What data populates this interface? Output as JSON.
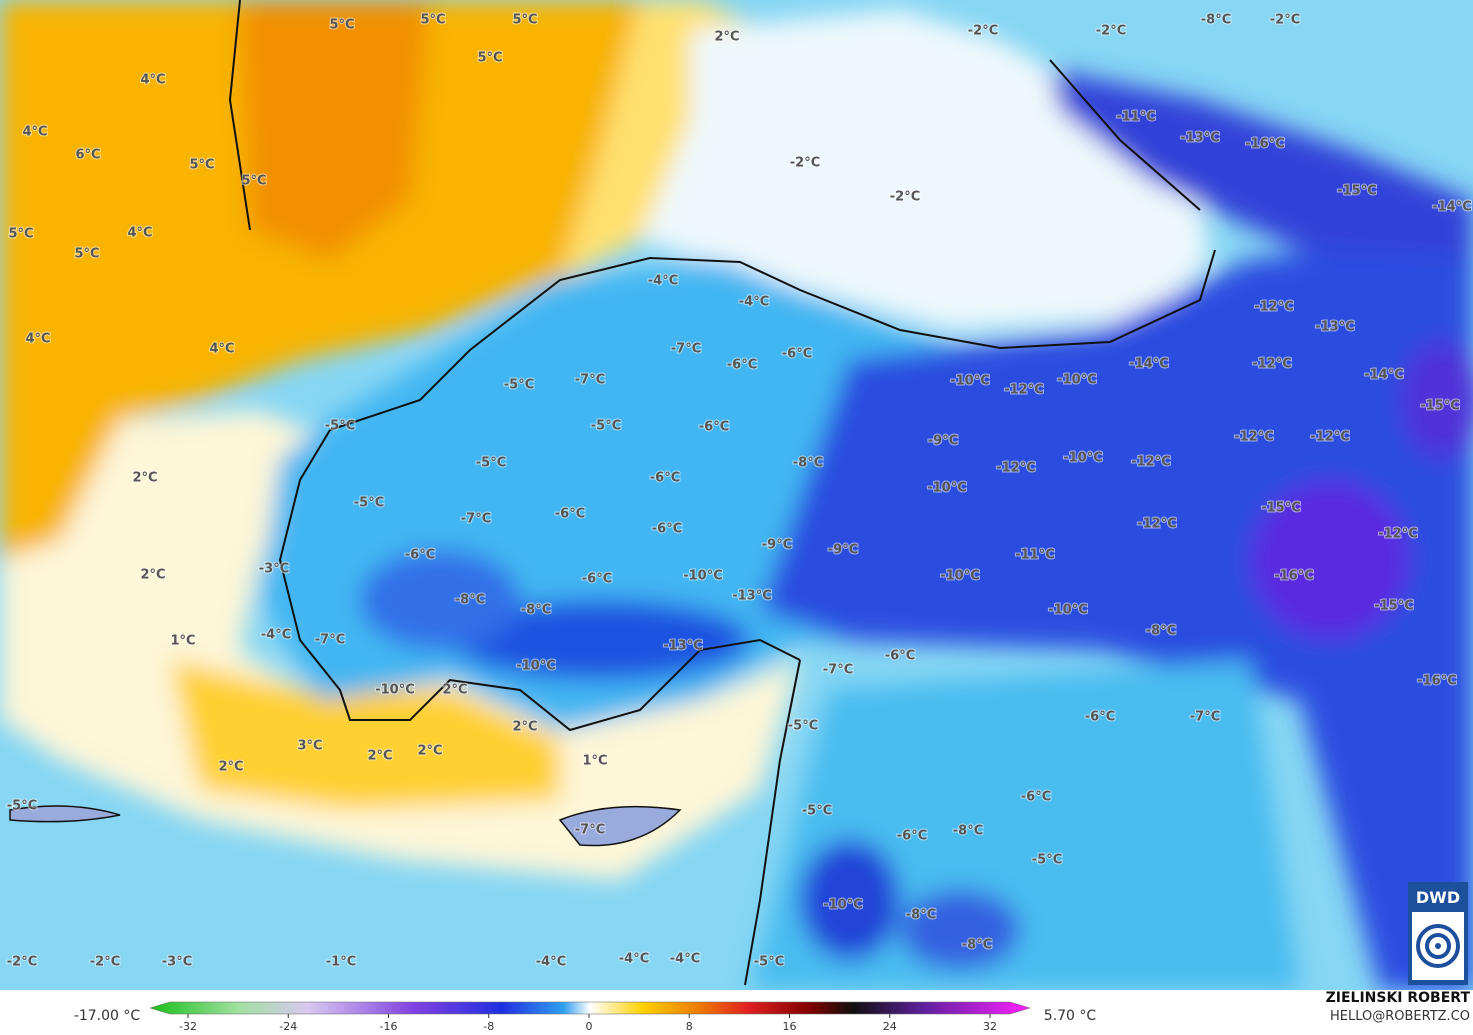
{
  "labels": [
    "5°C",
    "5°C",
    "5°C",
    "5°C",
    "2°C",
    "-2°C",
    "-2°C",
    "-8°C",
    "-2°C",
    "4°C",
    "4°C",
    "6°C",
    "5°C",
    "5°C",
    "-2°C",
    "-2°C",
    "-11°C",
    "-13°C",
    "-16°C",
    "-15°C",
    "-14°C",
    "5°C",
    "4°C",
    "5°C",
    "4°C",
    "4°C",
    "-4°C",
    "-4°C",
    "-12°C",
    "-13°C",
    "-7°C",
    "-6°C",
    "-6°C",
    "-14°C",
    "-12°C",
    "-14°C",
    "-5°C",
    "-7°C",
    "-10°C",
    "-12°C",
    "-10°C",
    "-15°C",
    "-5°C",
    "-5°C",
    "-6°C",
    "-9°C",
    "-12°C",
    "-12°C",
    "2°C",
    "-5°C",
    "-8°C",
    "-12°C",
    "-10°C",
    "-12°C",
    "-5°C",
    "-6°C",
    "-10°C",
    "-7°C",
    "-6°C",
    "-6°C",
    "-12°C",
    "-15°C",
    "-12°C",
    "-9°C",
    "-9°C",
    "-6°C",
    "-11°C",
    "-3°C",
    "2°C",
    "-6°C",
    "-10°C",
    "-10°C",
    "-16°C",
    "-8°C",
    "-8°C",
    "-13°C",
    "-10°C",
    "-15°C",
    "1°C",
    "-4°C",
    "-7°C",
    "-8°C",
    "-13°C",
    "-10°C",
    "-6°C",
    "-7°C",
    "-16°C",
    "-10°C",
    "2°C",
    "-6°C",
    "-7°C",
    "2°C",
    "-5°C",
    "3°C",
    "2°C",
    "2°C",
    "1°C",
    "2°C",
    "-6°C",
    "-5°C",
    "-5°C",
    "-7°C",
    "-6°C",
    "-8°C",
    "-5°C",
    "-10°C",
    "-8°C",
    "-8°C",
    "-2°C",
    "-2°C",
    "-3°C",
    "-1°C",
    "-4°C",
    "-4°C",
    "-4°C",
    "-5°C"
  ],
  "colorbar": {
    "min_label": "-17.00 °C",
    "max_label": "5.70 °C",
    "ticks": [
      -32,
      -24,
      -16,
      -8,
      0,
      8,
      16,
      24,
      32
    ]
  },
  "credit": {
    "name": "ZIELINSKI ROBERT",
    "email": "HELLO@ROBERTZ.CO"
  },
  "logo": "DWD"
}
